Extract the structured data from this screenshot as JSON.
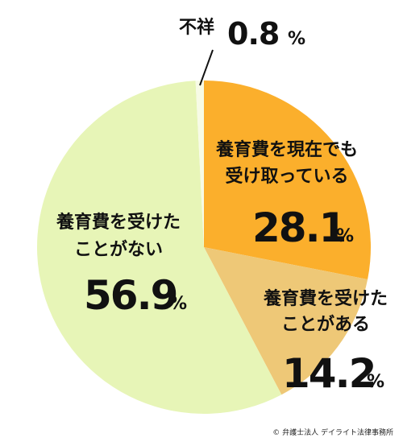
{
  "chart_data": {
    "type": "pie",
    "title": "",
    "unit": "%",
    "start_angle_deg": 0,
    "direction": "clockwise",
    "slices": [
      {
        "label_lines": [
          "養育費を現在でも",
          "受け取っている"
        ],
        "value": 28.1,
        "value_text": "28.1",
        "color": "#FBAF2C"
      },
      {
        "label_lines": [
          "養育費を受けた",
          "ことがある"
        ],
        "value": 14.2,
        "value_text": "14.2",
        "color": "#EEC877"
      },
      {
        "label_lines": [
          "養育費を受けた",
          "ことがない"
        ],
        "value": 56.9,
        "value_text": "56.9",
        "color": "#E7F5B7"
      },
      {
        "label_lines": [
          "不祥"
        ],
        "value": 0.8,
        "value_text": "0.8",
        "color": "#F7FBE6"
      }
    ]
  },
  "credit": "© 弁護士法人 デイライト法律事務所"
}
